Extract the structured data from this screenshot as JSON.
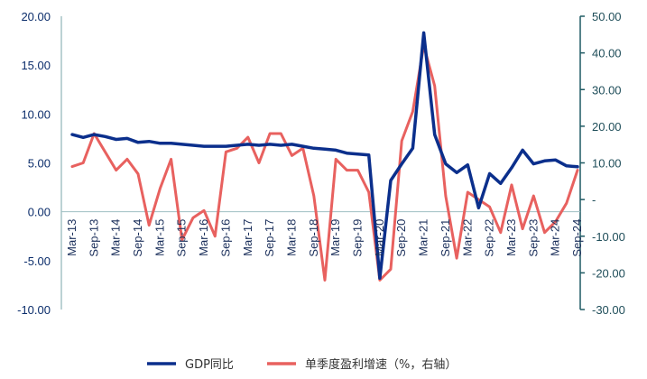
{
  "chart_data": {
    "type": "line",
    "x_tick_labels": [
      "Mar-13",
      "Sep-13",
      "Mar-14",
      "Sep-14",
      "Mar-15",
      "Sep-15",
      "Mar-16",
      "Sep-16",
      "Mar-17",
      "Sep-17",
      "Mar-18",
      "Sep-18",
      "Mar-19",
      "Sep-19",
      "Mar-20",
      "Sep-20",
      "Mar-21",
      "Sep-21",
      "Mar-22",
      "Sep-22",
      "Mar-23",
      "Sep-23",
      "Mar-24",
      "Sep-24"
    ],
    "left_axis": {
      "ylim": [
        -10,
        20
      ],
      "tick_labels": [
        "20.00",
        "15.00",
        "10.00",
        "5.00",
        "0.00",
        "-5.00",
        "-10.00"
      ],
      "color": "#0b2d6b"
    },
    "right_axis": {
      "ylim": [
        -30,
        50
      ],
      "tick_labels": [
        "50.00",
        "40.00",
        "30.00",
        "20.00",
        "10.00",
        "-",
        "-10.00",
        "-20.00",
        "-30.00"
      ],
      "color": "#1f4e5a"
    },
    "series": [
      {
        "name": "GDP同比",
        "axis": "left",
        "color": "#0b2f8c",
        "values": [
          7.9,
          7.6,
          7.9,
          7.7,
          7.4,
          7.5,
          7.1,
          7.2,
          7.0,
          7.0,
          6.9,
          6.8,
          6.7,
          6.7,
          6.7,
          6.8,
          6.9,
          6.8,
          6.9,
          6.8,
          6.9,
          6.7,
          6.5,
          6.4,
          6.3,
          6.0,
          5.9,
          5.8,
          -6.8,
          3.2,
          4.9,
          6.5,
          18.3,
          7.9,
          4.9,
          4.0,
          4.8,
          0.4,
          3.9,
          2.9,
          4.5,
          6.3,
          4.9,
          5.2,
          5.3,
          4.7,
          4.6
        ]
      },
      {
        "name": "单季度盈利增速（%，右轴）",
        "axis": "right",
        "color": "#e8615f",
        "values": [
          9,
          10,
          18,
          13,
          8,
          11,
          7,
          -7,
          3,
          11,
          -11,
          -5,
          -3,
          -10,
          13,
          14,
          17,
          10,
          18,
          18,
          12,
          14,
          1,
          -22,
          11,
          8,
          8,
          2,
          -22,
          -19,
          16,
          24,
          42,
          31,
          1,
          -16,
          2,
          0,
          -2,
          -9,
          4,
          -8,
          1,
          -9,
          -6,
          -1,
          8
        ]
      }
    ]
  },
  "legend": {
    "items": [
      {
        "label": "GDP同比",
        "color": "#0b2f8c"
      },
      {
        "label": "单季度盈利增速（%，右轴）",
        "color": "#e8615f"
      }
    ]
  }
}
